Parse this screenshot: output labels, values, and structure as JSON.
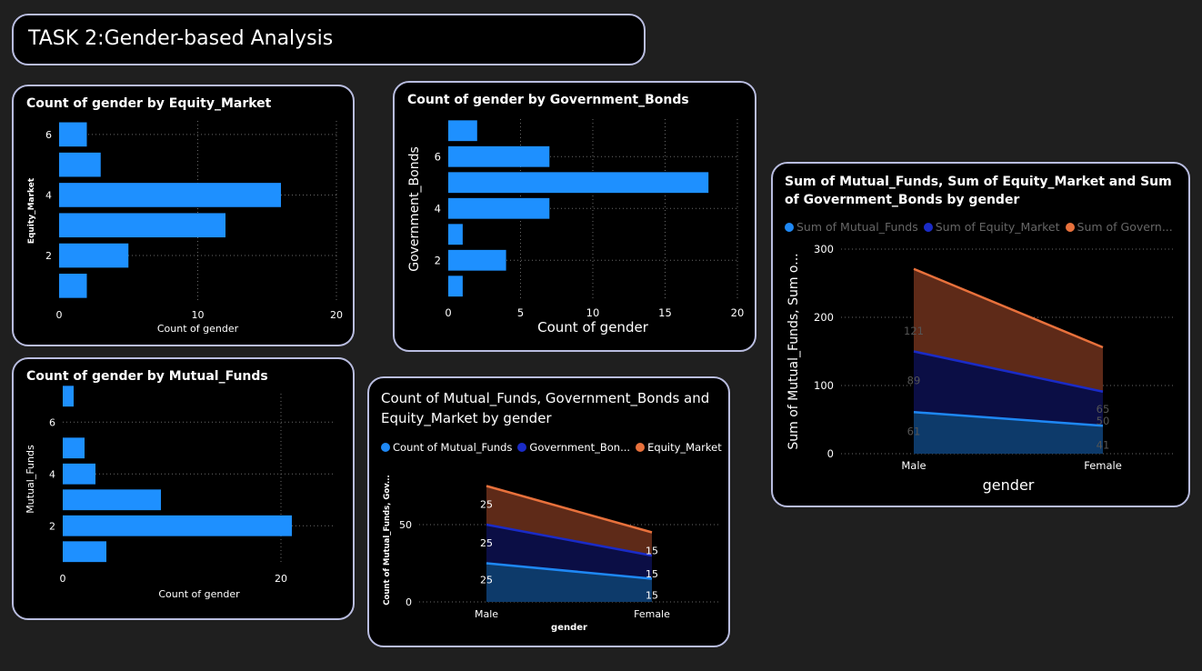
{
  "page_title": "TASK 2:Gender-based Analysis",
  "colors": {
    "bar": "#1e90ff",
    "mutual": "#1e88f5",
    "gov": "#1a2bc7",
    "equity": "#e8713c",
    "grid": "#6a6a6a"
  },
  "chart_data": [
    {
      "id": "equity",
      "type": "bar",
      "orientation": "horizontal",
      "title": "Count of gender by Equity_Market",
      "xlabel": "Count of gender",
      "ylabel": "Equity_Market",
      "categories": [
        1,
        2,
        3,
        4,
        5,
        6
      ],
      "values": [
        2,
        5,
        12,
        16,
        3,
        2
      ],
      "xlim": [
        0,
        20
      ],
      "xticks": [
        0,
        10,
        20
      ],
      "yticks": [
        2,
        4,
        6
      ]
    },
    {
      "id": "gov",
      "type": "bar",
      "orientation": "horizontal",
      "title": "Count of gender by Government_Bonds",
      "xlabel": "Count of gender",
      "ylabel": "Government_Bonds",
      "categories": [
        1,
        2,
        3,
        4,
        5,
        6,
        7
      ],
      "values": [
        1,
        4,
        1,
        7,
        18,
        7,
        2
      ],
      "xlim": [
        0,
        20
      ],
      "xticks": [
        0,
        5,
        10,
        15,
        20
      ],
      "yticks": [
        2,
        4,
        6
      ]
    },
    {
      "id": "mutual",
      "type": "bar",
      "orientation": "horizontal",
      "title": "Count of gender by Mutual_Funds",
      "xlabel": "Count of gender",
      "ylabel": "Mutual_Funds",
      "categories": [
        1,
        2,
        3,
        4,
        5,
        6,
        7
      ],
      "values": [
        4,
        21,
        9,
        3,
        2,
        0,
        1
      ],
      "xlim": [
        0,
        25
      ],
      "xticks": [
        0,
        20
      ],
      "yticks": [
        2,
        4,
        6
      ]
    },
    {
      "id": "count_area",
      "type": "area",
      "stacked": true,
      "title": "Count of Mutual_Funds, Government_Bonds and Equity_Market by gender",
      "xlabel": "gender",
      "ylabel": "Count of Mutual_Funds, Gov...",
      "categories": [
        "Male",
        "Female"
      ],
      "series": [
        {
          "name": "Count of Mutual_Funds",
          "legend": "Count of Mutual_Funds",
          "values": [
            25,
            15
          ],
          "labels": [
            "25",
            "15"
          ]
        },
        {
          "name": "Government_Bonds",
          "legend": "Government_Bon...",
          "values": [
            25,
            15
          ],
          "labels": [
            "25",
            "15"
          ]
        },
        {
          "name": "Equity_Market",
          "legend": "Equity_Market",
          "values": [
            25,
            15
          ],
          "labels": [
            "25",
            "15"
          ]
        }
      ],
      "ylim": [
        0,
        80
      ],
      "yticks": [
        0,
        50
      ],
      "grid": true
    },
    {
      "id": "sum_area",
      "type": "area",
      "stacked": true,
      "title": "Sum of Mutual_Funds, Sum of Equity_Market and Sum of Government_Bonds by gender",
      "xlabel": "gender",
      "ylabel": "Sum of Mutual_Funds, Sum o...",
      "categories": [
        "Male",
        "Female"
      ],
      "series": [
        {
          "name": "Sum of Mutual_Funds",
          "legend": "Sum of Mutual_Funds",
          "values": [
            61,
            41
          ],
          "labels": [
            "61",
            "41"
          ]
        },
        {
          "name": "Sum of Equity_Market",
          "legend": "Sum of Equity_Market",
          "values": [
            89,
            50
          ],
          "labels": [
            "89",
            "50"
          ]
        },
        {
          "name": "Sum of Government_Bonds",
          "legend": "Sum of Govern...",
          "values": [
            121,
            65
          ],
          "labels": [
            "121",
            "65"
          ]
        }
      ],
      "ylim": [
        0,
        300
      ],
      "yticks": [
        0,
        100,
        200,
        300
      ],
      "grid": true
    }
  ]
}
